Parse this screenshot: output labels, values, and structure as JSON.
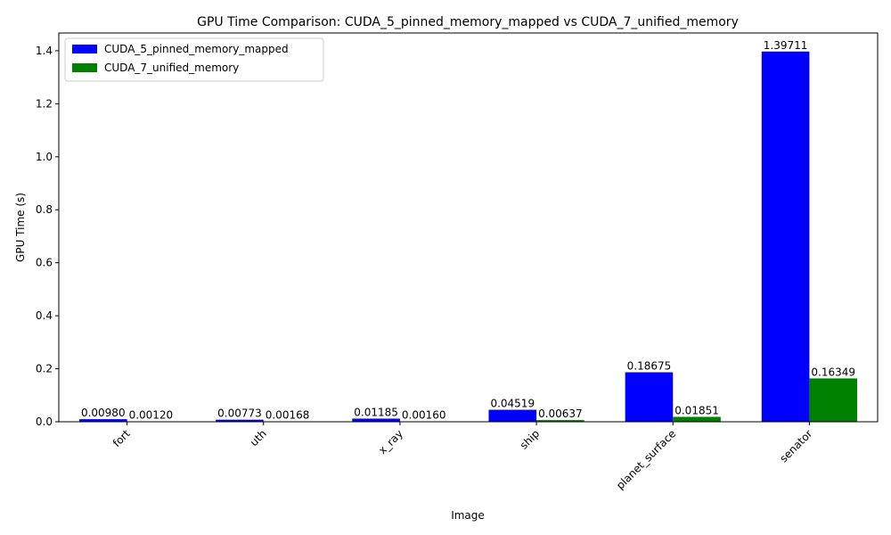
{
  "chart_data": {
    "type": "bar",
    "title": "GPU Time Comparison: CUDA_5_pinned_memory_mapped vs CUDA_7_unified_memory",
    "xlabel": "Image",
    "ylabel": "GPU Time (s)",
    "categories": [
      "fort",
      "uth",
      "x_ray",
      "ship",
      "planet_surface",
      "senator"
    ],
    "series": [
      {
        "name": "CUDA_5_pinned_memory_mapped",
        "color": "#0000ff",
        "values": [
          0.0098,
          0.00773,
          0.01185,
          0.04519,
          0.18675,
          1.39711
        ],
        "labels": [
          "0.00980",
          "0.00773",
          "0.01185",
          "0.04519",
          "0.18675",
          "1.39711"
        ]
      },
      {
        "name": "CUDA_7_unified_memory",
        "color": "#008000",
        "values": [
          0.0012,
          0.00168,
          0.0016,
          0.00637,
          0.01851,
          0.16349
        ],
        "labels": [
          "0.00120",
          "0.00168",
          "0.00160",
          "0.00637",
          "0.01851",
          "0.16349"
        ]
      }
    ],
    "ylim": [
      0,
      1.467
    ],
    "yticks": [
      "0.0",
      "0.2",
      "0.4",
      "0.6",
      "0.8",
      "1.0",
      "1.2",
      "1.4"
    ],
    "grid": false,
    "legend_position": "top-left"
  }
}
